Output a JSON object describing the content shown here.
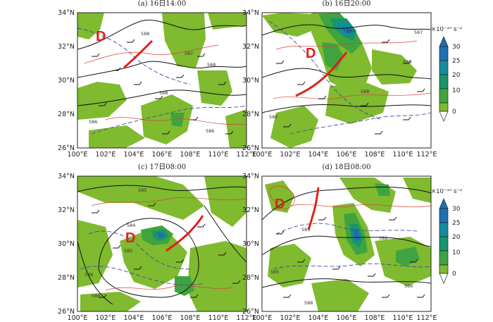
{
  "map": {
    "lat_labels": [
      "26°N",
      "28°N",
      "30°N",
      "32°N",
      "34°N"
    ],
    "lon_labels": [
      "100°E",
      "102°E",
      "104°E",
      "106°E",
      "108°E",
      "110°E",
      "112°E"
    ],
    "low_center_label": "D",
    "colors": {
      "level_0": "#7fba2f",
      "level_10": "#3fa43f",
      "level_20": "#19956a",
      "level_25": "#138d9e",
      "level_30": "#1f6fb3",
      "shear_line": "#e0201b",
      "height_contour": "#111111",
      "dashed_contour": "#3a4aa6",
      "temp_contour": "#d9423b"
    }
  },
  "colorbars": [
    {
      "unit": "×10⁻¹⁰ s⁻²",
      "ticks": [
        "30",
        "25",
        "20",
        "10",
        "0"
      ]
    },
    {
      "unit": "×10⁻¹⁰ s⁻²",
      "ticks": [
        "30",
        "25",
        "20",
        "10",
        "0"
      ]
    }
  ],
  "panels": [
    {
      "title": "(a) 16日14:00",
      "contour_labels": [
        "588",
        "587",
        "588",
        "586",
        "586",
        "588"
      ]
    },
    {
      "title": "(b) 16日20:00",
      "contour_labels": [
        "587",
        "588",
        "586",
        "587",
        "588"
      ]
    },
    {
      "title": "(c) 17日08:00",
      "contour_labels": [
        "585",
        "586",
        "584",
        "585",
        "586"
      ]
    },
    {
      "title": "(d) 18日08:00",
      "contour_labels": [
        "583",
        "585",
        "586",
        "588",
        "586"
      ]
    }
  ]
}
